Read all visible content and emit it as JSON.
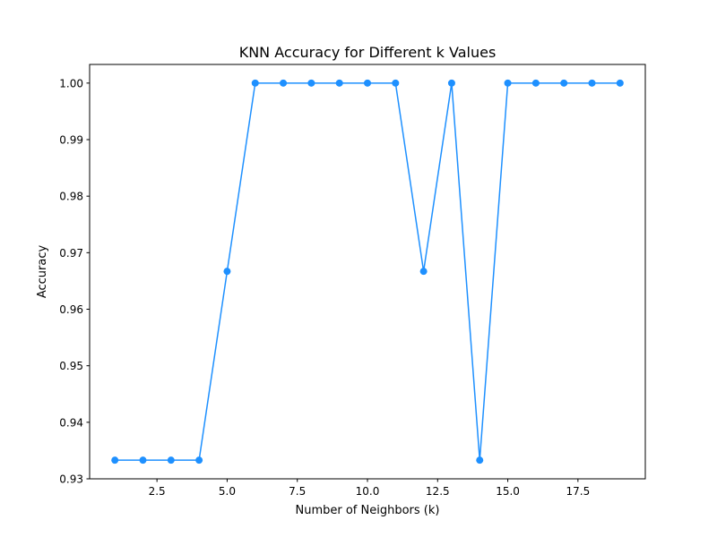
{
  "chart_data": {
    "type": "line",
    "title": "KNN Accuracy for Different k Values",
    "xlabel": "Number of Neighbors (k)",
    "ylabel": "Accuracy",
    "xlim": [
      0.1,
      19.9
    ],
    "ylim": [
      0.93,
      1.0033
    ],
    "xticks": [
      2.5,
      5.0,
      7.5,
      10.0,
      12.5,
      15.0,
      17.5
    ],
    "xtick_labels": [
      "2.5",
      "5.0",
      "7.5",
      "10.0",
      "12.5",
      "15.0",
      "17.5"
    ],
    "yticks": [
      0.93,
      0.94,
      0.95,
      0.96,
      0.97,
      0.98,
      0.99,
      1.0
    ],
    "ytick_labels": [
      "0.93",
      "0.94",
      "0.95",
      "0.96",
      "0.97",
      "0.98",
      "0.99",
      "1.00"
    ],
    "grid": false,
    "color": "#1e90ff",
    "series": [
      {
        "x": [
          1,
          2,
          3,
          4,
          5,
          6,
          7,
          8,
          9,
          10,
          11,
          12,
          13,
          14,
          15,
          16,
          17,
          18,
          19
        ],
        "values": [
          0.9333,
          0.9333,
          0.9333,
          0.9333,
          0.9667,
          1.0,
          1.0,
          1.0,
          1.0,
          1.0,
          1.0,
          0.9667,
          1.0,
          0.9333,
          1.0,
          1.0,
          1.0,
          1.0,
          1.0
        ]
      }
    ]
  }
}
